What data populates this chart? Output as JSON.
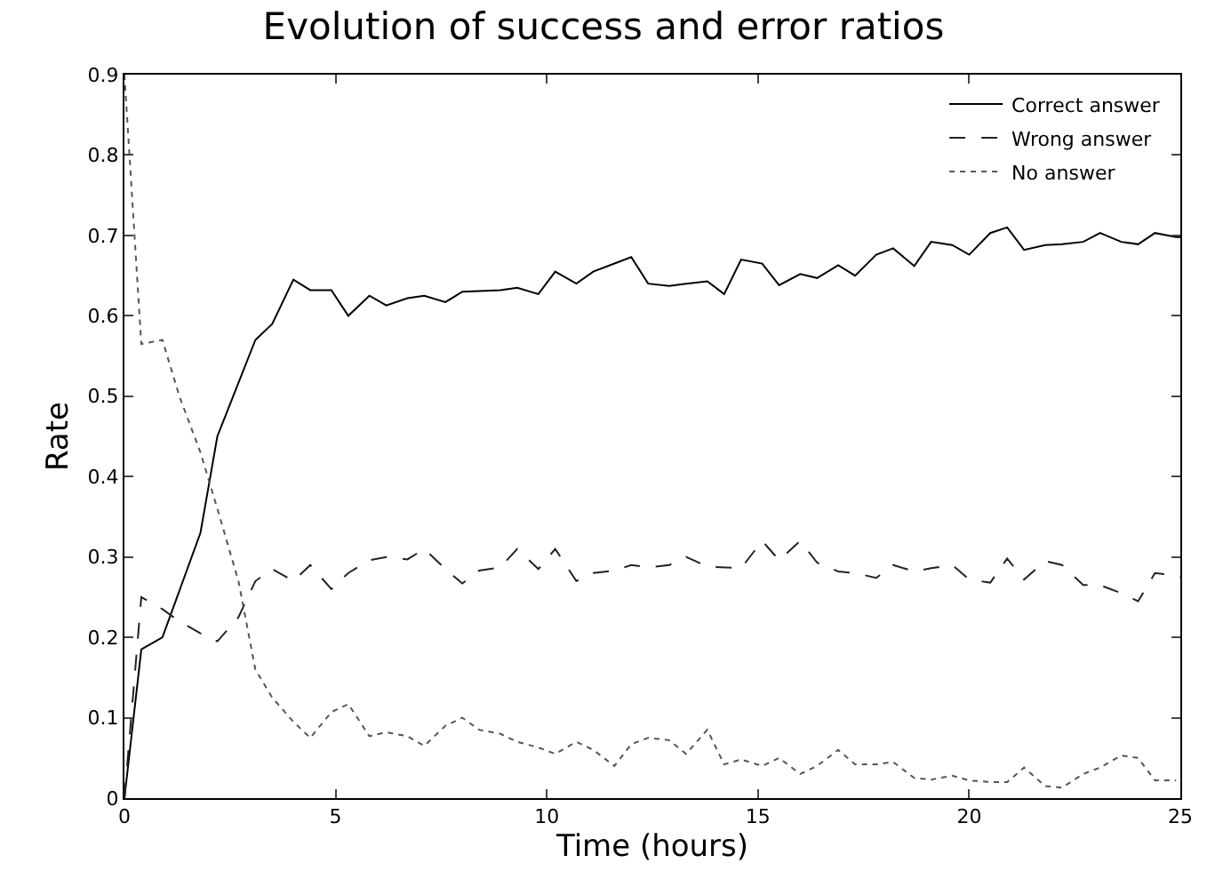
{
  "chart_data": {
    "type": "line",
    "title": "Evolution of success and error ratios",
    "xlabel": "Time (hours)",
    "ylabel": "Rate",
    "xlim": [
      0,
      25
    ],
    "xticks": [
      0,
      5,
      10,
      15,
      20,
      25
    ],
    "ylim": [
      0,
      0.9
    ],
    "yticks": [
      0,
      0.1,
      0.2,
      0.3,
      0.4,
      0.5,
      0.6,
      0.7,
      0.8,
      0.9
    ],
    "legend": "top right",
    "marker": "none",
    "series": [
      {
        "name": "Correct answer",
        "color": "#000000",
        "line_style": "solid",
        "x": [
          0,
          0.4,
          0.9,
          1.8,
          2.2,
          3.1,
          3.5,
          4.0,
          4.4,
          4.9,
          5.3,
          5.8,
          6.2,
          6.7,
          7.1,
          7.6,
          8.0,
          8.9,
          9.3,
          9.8,
          10.2,
          10.7,
          11.1,
          11.6,
          12.0,
          12.4,
          12.9,
          13.3,
          13.8,
          14.2,
          14.6,
          15.1,
          15.5,
          16.0,
          16.4,
          16.9,
          17.3,
          17.8,
          18.2,
          18.7,
          19.1,
          19.6,
          20.0,
          20.5,
          20.9,
          21.3,
          21.8,
          22.2,
          22.7,
          23.1,
          23.6,
          24.0,
          24.4,
          24.9,
          25
        ],
        "values": [
          0,
          0.185,
          0.2,
          0.33,
          0.45,
          0.57,
          0.59,
          0.645,
          0.632,
          0.632,
          0.6,
          0.625,
          0.613,
          0.622,
          0.625,
          0.617,
          0.63,
          0.632,
          0.635,
          0.627,
          0.655,
          0.64,
          0.655,
          0.665,
          0.673,
          0.64,
          0.637,
          0.64,
          0.643,
          0.627,
          0.67,
          0.665,
          0.638,
          0.652,
          0.647,
          0.663,
          0.65,
          0.676,
          0.684,
          0.662,
          0.692,
          0.688,
          0.676,
          0.703,
          0.71,
          0.682,
          0.688,
          0.689,
          0.692,
          0.703,
          0.692,
          0.689,
          0.703,
          0.698,
          0.698
        ]
      },
      {
        "name": "Wrong answer",
        "color": "#222222",
        "line_style": "dashed",
        "x": [
          0,
          0.4,
          0.9,
          1.3,
          1.8,
          2.2,
          2.7,
          3.1,
          3.5,
          4.0,
          4.4,
          4.9,
          5.3,
          5.8,
          6.2,
          6.7,
          7.1,
          7.6,
          8.0,
          8.4,
          8.9,
          9.3,
          9.8,
          10.2,
          10.7,
          11.1,
          11.6,
          12.0,
          12.4,
          12.9,
          13.3,
          13.8,
          14.6,
          15.1,
          15.5,
          16.0,
          16.4,
          16.9,
          17.3,
          17.8,
          18.2,
          18.7,
          19.1,
          19.6,
          20.0,
          20.5,
          20.9,
          21.3,
          21.8,
          22.2,
          22.7,
          23.1,
          23.6,
          24.0,
          24.4,
          24.9,
          25
        ],
        "values": [
          0,
          0.25,
          0.235,
          0.22,
          0.205,
          0.195,
          0.225,
          0.27,
          0.285,
          0.27,
          0.29,
          0.26,
          0.28,
          0.296,
          0.3,
          0.297,
          0.31,
          0.285,
          0.267,
          0.283,
          0.287,
          0.31,
          0.285,
          0.31,
          0.27,
          0.28,
          0.283,
          0.29,
          0.287,
          0.29,
          0.3,
          0.288,
          0.286,
          0.32,
          0.296,
          0.32,
          0.293,
          0.282,
          0.28,
          0.274,
          0.29,
          0.282,
          0.286,
          0.29,
          0.272,
          0.268,
          0.298,
          0.272,
          0.295,
          0.29,
          0.265,
          0.265,
          0.255,
          0.245,
          0.28,
          0.277,
          0.275
        ]
      },
      {
        "name": "No answer",
        "color": "#555555",
        "line_style": "dotted",
        "x": [
          0,
          0.4,
          0.9,
          1.3,
          1.8,
          2.2,
          2.7,
          3.1,
          3.5,
          4.0,
          4.4,
          4.9,
          5.3,
          5.8,
          6.2,
          6.7,
          7.1,
          7.6,
          8.0,
          8.4,
          8.9,
          9.3,
          9.8,
          10.2,
          10.7,
          11.1,
          11.6,
          12.0,
          12.4,
          12.9,
          13.3,
          13.8,
          14.2,
          14.6,
          15.1,
          15.5,
          16.0,
          16.4,
          16.9,
          17.3,
          17.8,
          18.2,
          18.7,
          19.1,
          19.6,
          20.0,
          20.5,
          20.9,
          21.3,
          21.8,
          22.2,
          22.7,
          23.1,
          23.6,
          24.0,
          24.4,
          24.9
        ],
        "values": [
          0.9,
          0.565,
          0.57,
          0.5,
          0.43,
          0.36,
          0.27,
          0.16,
          0.125,
          0.095,
          0.075,
          0.107,
          0.117,
          0.077,
          0.082,
          0.077,
          0.065,
          0.09,
          0.1,
          0.085,
          0.08,
          0.07,
          0.063,
          0.055,
          0.07,
          0.06,
          0.04,
          0.067,
          0.075,
          0.072,
          0.055,
          0.085,
          0.042,
          0.048,
          0.04,
          0.05,
          0.03,
          0.04,
          0.06,
          0.042,
          0.042,
          0.045,
          0.025,
          0.023,
          0.028,
          0.022,
          0.02,
          0.02,
          0.038,
          0.015,
          0.013,
          0.03,
          0.038,
          0.053,
          0.05,
          0.022,
          0.022
        ]
      }
    ]
  }
}
